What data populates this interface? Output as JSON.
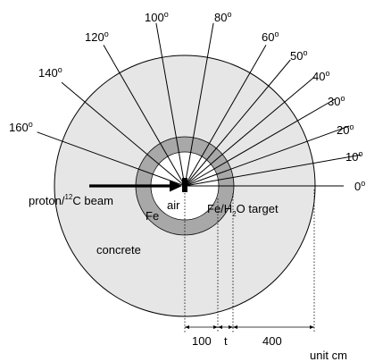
{
  "angles": [
    {
      "label": "0",
      "deg": 0
    },
    {
      "label": "10",
      "deg": 10
    },
    {
      "label": "20",
      "deg": 20
    },
    {
      "label": "30",
      "deg": 30
    },
    {
      "label": "40",
      "deg": 40
    },
    {
      "label": "50",
      "deg": 50
    },
    {
      "label": "60",
      "deg": 60
    },
    {
      "label": "80",
      "deg": 80
    },
    {
      "label": "100",
      "deg": 100
    },
    {
      "label": "120",
      "deg": 120
    },
    {
      "label": "140",
      "deg": 140
    },
    {
      "label": "160",
      "deg": 160
    }
  ],
  "degree_symbol": "o",
  "labels": {
    "beam_prefix": "proton/",
    "beam_super": "12",
    "beam_suffix": "C beam",
    "air": "air",
    "fe": "Fe",
    "target_prefix": "Fe/H",
    "target_sub": "2",
    "target_suffix": "O target",
    "concrete": "concrete",
    "unit": "unit cm"
  },
  "dimensions": {
    "inner": "100",
    "shell": "t",
    "outer": "400"
  },
  "colors": {
    "concrete": "#e6e6e6",
    "shell": "#a8a8a8",
    "air": "#ffffff",
    "line": "#000000"
  }
}
